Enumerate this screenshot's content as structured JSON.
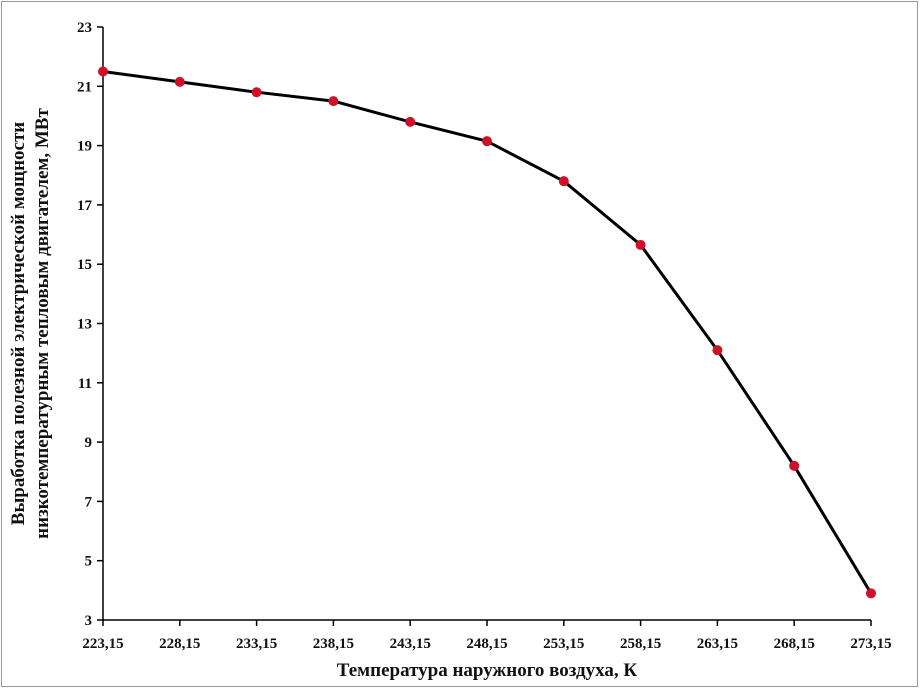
{
  "chart_data": {
    "type": "line",
    "xlabel": "Температура наружного воздуха, К",
    "ylabel_lines": [
      "Выработка полезной электрической мощности",
      "низкотемпературным тепловым двигателем, МВт"
    ],
    "x_tick_labels": [
      "223,15",
      "228,15",
      "233,15",
      "238,15",
      "243,15",
      "248,15",
      "253,15",
      "258,15",
      "263,15",
      "268,15",
      "273,15"
    ],
    "y_tick_labels": [
      "3",
      "5",
      "7",
      "9",
      "11",
      "13",
      "15",
      "17",
      "19",
      "21",
      "23"
    ],
    "ylim": [
      3,
      23
    ],
    "x": [
      223.15,
      228.15,
      233.15,
      238.15,
      243.15,
      248.15,
      253.15,
      258.15,
      263.15,
      268.15,
      273.15
    ],
    "series": [
      {
        "values": [
          21.5,
          21.15,
          20.8,
          20.5,
          19.8,
          19.15,
          17.8,
          15.65,
          12.1,
          8.2,
          3.9
        ]
      }
    ],
    "grid": false,
    "line_color": "#000000",
    "marker_color": "#d0102a"
  }
}
